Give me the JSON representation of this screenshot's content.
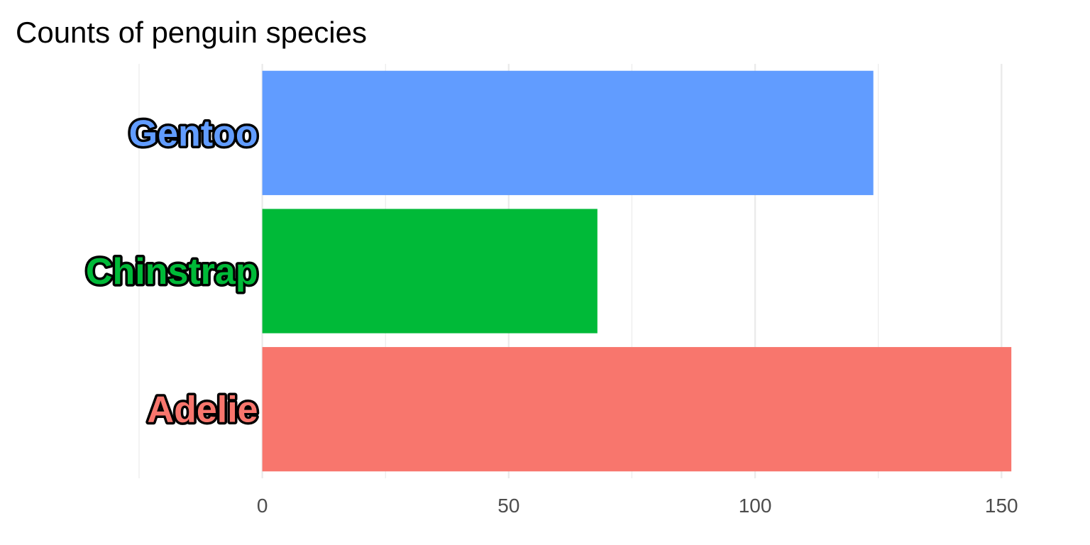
{
  "chart_data": {
    "type": "bar",
    "orientation": "horizontal",
    "title": "Counts of penguin species",
    "xlabel": "",
    "ylabel": "",
    "categories": [
      "Adelie",
      "Chinstrap",
      "Gentoo"
    ],
    "values": [
      152,
      68,
      124
    ],
    "colors": [
      "#F8766D",
      "#00BA38",
      "#619CFF"
    ],
    "xlim": [
      -25,
      155
    ],
    "xticks": [
      0,
      50,
      100,
      150
    ],
    "grid": true,
    "legend": "none"
  }
}
